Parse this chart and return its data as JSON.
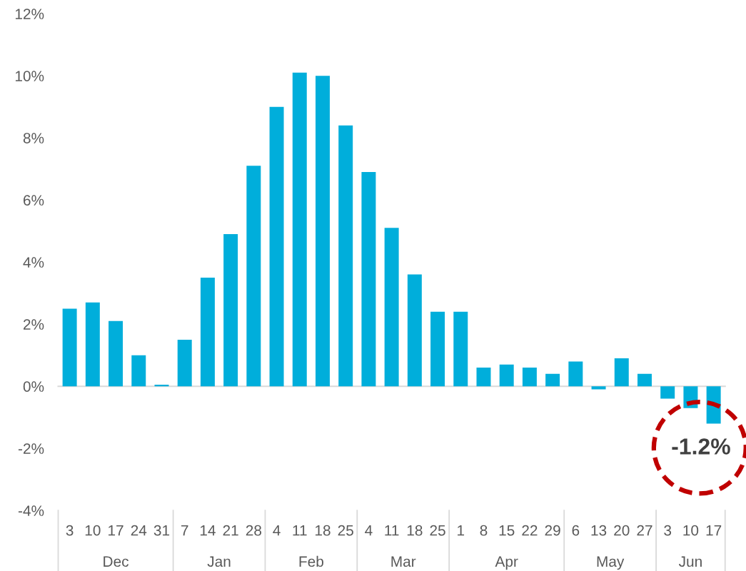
{
  "chart_data": {
    "type": "bar",
    "categories": [
      "3",
      "10",
      "17",
      "24",
      "31",
      "7",
      "14",
      "21",
      "28",
      "4",
      "11",
      "18",
      "25",
      "4",
      "11",
      "18",
      "25",
      "1",
      "8",
      "15",
      "22",
      "29",
      "6",
      "13",
      "20",
      "27",
      "3",
      "10",
      "17"
    ],
    "values": [
      2.5,
      2.7,
      2.1,
      1.0,
      0.05,
      1.5,
      3.5,
      4.9,
      7.1,
      9.0,
      10.1,
      10.0,
      8.4,
      6.9,
      5.1,
      3.6,
      2.4,
      2.4,
      0.6,
      0.7,
      0.6,
      0.4,
      0.8,
      -0.1,
      0.9,
      0.4,
      -0.4,
      -0.7,
      -1.2
    ],
    "color": "#00aedb",
    "ylim": [
      -4,
      12
    ],
    "yticks": [
      {
        "value": -4,
        "label": "-4%"
      },
      {
        "value": -2,
        "label": "-2%"
      },
      {
        "value": 0,
        "label": "0%"
      },
      {
        "value": 2,
        "label": "2%"
      },
      {
        "value": 4,
        "label": "4%"
      },
      {
        "value": 6,
        "label": "6%"
      },
      {
        "value": 8,
        "label": "8%"
      },
      {
        "value": 10,
        "label": "10%"
      },
      {
        "value": 12,
        "label": "12%"
      }
    ],
    "annotations": [
      "-1.2%",
      "Dec",
      "Jan",
      "Feb",
      "Mar",
      "Apr",
      "May",
      "Jun"
    ],
    "legend": false
  }
}
